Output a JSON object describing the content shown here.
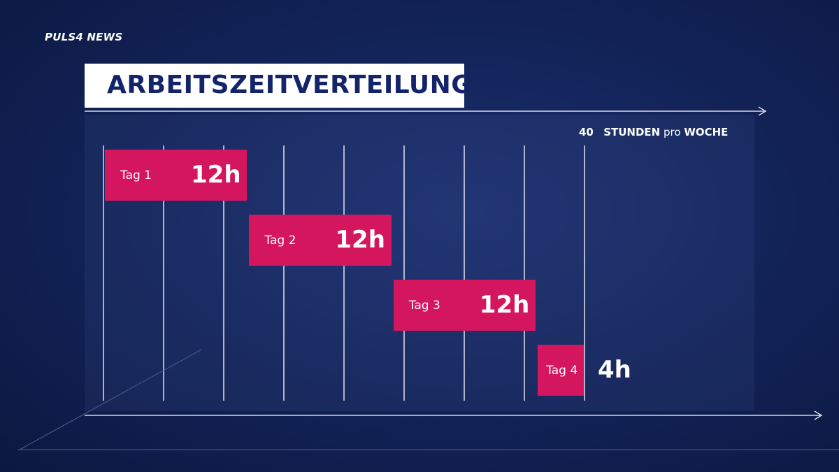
{
  "logo": {
    "text": "PULS 4 NEWS"
  },
  "title": "ARBEITSZEITVERTEILUNG",
  "header": {
    "number": "40",
    "unit": "STUNDEN",
    "pro": "pro",
    "week": "WOCHE"
  },
  "colors": {
    "bar": "#d4165f",
    "title_text": "#13246a",
    "background": "#13245a"
  },
  "chart_data": {
    "type": "bar",
    "categories": [
      "Tag 1",
      "Tag 2",
      "Tag 3",
      "Tag 4"
    ],
    "values": [
      12,
      12,
      12,
      4
    ],
    "value_labels": [
      "12h",
      "12h",
      "12h",
      "4h"
    ],
    "total_label": "40 STUNDEN pro WOCHE",
    "xlim": [
      0,
      40
    ],
    "gridline_step": 5
  }
}
